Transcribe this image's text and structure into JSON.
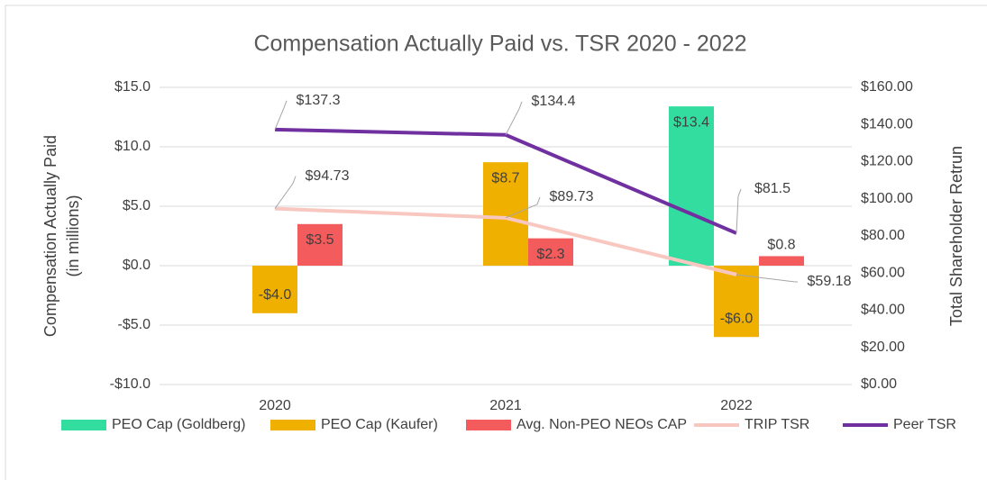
{
  "chart_data": {
    "type": "bar",
    "title": "Compensation Actually Paid vs. TSR 2020 - 2022",
    "y_label": [
      "Compensation Actually Paid",
      "(in millions)"
    ],
    "y2_label": "Total Shareholder Retrun",
    "categories": [
      "2020",
      "2021",
      "2022"
    ],
    "ylim": [
      -10,
      15
    ],
    "yticks": [
      {
        "value": -10,
        "label": "-$10.0"
      },
      {
        "value": -5,
        "label": "-$5.0"
      },
      {
        "value": 0,
        "label": "$0.0"
      },
      {
        "value": 5,
        "label": "$5.0"
      },
      {
        "value": 10,
        "label": "$10.0"
      },
      {
        "value": 15,
        "label": "$15.0"
      }
    ],
    "y2lim": [
      0,
      160
    ],
    "y2ticks": [
      {
        "value": 0,
        "label": "$0.00"
      },
      {
        "value": 20,
        "label": "$20.00"
      },
      {
        "value": 40,
        "label": "$40.00"
      },
      {
        "value": 60,
        "label": "$60.00"
      },
      {
        "value": 80,
        "label": "$80.00"
      },
      {
        "value": 100,
        "label": "$100.00"
      },
      {
        "value": 120,
        "label": "$120.00"
      },
      {
        "value": 140,
        "label": "$140.00"
      },
      {
        "value": 160,
        "label": "$160.00"
      }
    ],
    "series": [
      {
        "name": "PEO Cap (Goldberg)",
        "type": "bar",
        "color": "#33dda0",
        "values": [
          null,
          null,
          13.4
        ],
        "value_labels": [
          null,
          null,
          "$13.4"
        ]
      },
      {
        "name": "PEO Cap (Kaufer)",
        "type": "bar",
        "color": "#f0b000",
        "values": [
          -4.0,
          8.7,
          -6.0
        ],
        "value_labels": [
          "-$4.0",
          "$8.7",
          "-$6.0"
        ]
      },
      {
        "name": "Avg. Non-PEO NEOs CAP",
        "type": "bar",
        "color": "#f35b5d",
        "values": [
          3.5,
          2.3,
          0.8
        ],
        "value_labels": [
          "$3.5",
          "$2.3",
          "$0.8"
        ]
      },
      {
        "name": "TRIP TSR",
        "type": "line",
        "axis": "y2",
        "color": "#f8c8c0",
        "values": [
          94.73,
          89.73,
          59.18
        ],
        "value_labels": [
          "$94.73",
          "$89.73",
          "$59.18"
        ]
      },
      {
        "name": "Peer TSR",
        "type": "line",
        "axis": "y2",
        "color": "#7030a0",
        "values": [
          137.3,
          134.4,
          81.5
        ],
        "value_labels": [
          "$137.3",
          "$134.4",
          "$81.5"
        ]
      }
    ]
  }
}
